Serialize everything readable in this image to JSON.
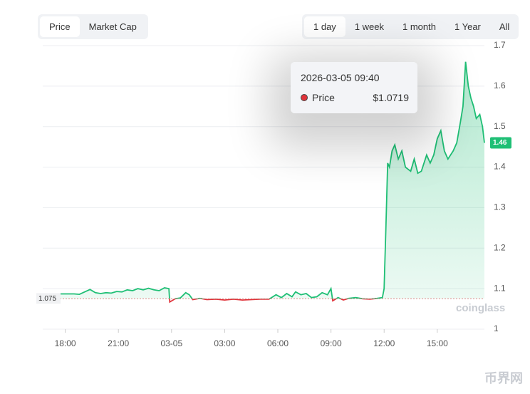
{
  "tabs_left": [
    "Price",
    "Market Cap"
  ],
  "tabs_right": [
    "1 day",
    "1 week",
    "1 month",
    "1 Year",
    "All"
  ],
  "tooltip": {
    "time": "2026-03-05 09:40",
    "name": "Price",
    "value": "$1.0719"
  },
  "watermark": "coinglass",
  "logo": "币界网",
  "chart_data": {
    "type": "line",
    "x": [
      16.75,
      17.0,
      17.5,
      18.0,
      18.5,
      18.8,
      19.1,
      19.4,
      19.7,
      20.0,
      20.3,
      20.6,
      20.9,
      21.2,
      21.5,
      21.8,
      22.1,
      22.4,
      22.7,
      23.0,
      23.3,
      23.6,
      23.85,
      23.9,
      24.2,
      24.5,
      24.8,
      25.0,
      25.2,
      25.6,
      26.0,
      26.5,
      27.0,
      27.5,
      28.0,
      28.5,
      29.0,
      29.5,
      29.9,
      30.2,
      30.5,
      30.8,
      31.0,
      31.3,
      31.6,
      31.9,
      32.2,
      32.5,
      32.8,
      33.0,
      33.1,
      33.4,
      33.7,
      34.0,
      34.4,
      34.8,
      35.2,
      35.6,
      35.9,
      36.0,
      36.1,
      36.2,
      36.3,
      36.45,
      36.6,
      36.8,
      37.0,
      37.2,
      37.5,
      37.7,
      37.9,
      38.1,
      38.4,
      38.6,
      38.8,
      39.0,
      39.2,
      39.4,
      39.6,
      39.9,
      40.1,
      40.3,
      40.45,
      40.6,
      40.75,
      40.9,
      41.05,
      41.2,
      41.4,
      41.55,
      41.66
    ],
    "series": [
      {
        "name": "Price",
        "color": "#1fbf75",
        "down_color": "#e0333a",
        "values": [
          1.087,
          1.086,
          1.087,
          1.087,
          1.087,
          1.086,
          1.092,
          1.098,
          1.09,
          1.088,
          1.09,
          1.089,
          1.093,
          1.092,
          1.097,
          1.095,
          1.1,
          1.097,
          1.101,
          1.097,
          1.095,
          1.102,
          1.1,
          1.067,
          1.075,
          1.077,
          1.09,
          1.085,
          1.073,
          1.076,
          1.073,
          1.074,
          1.072,
          1.074,
          1.072,
          1.073,
          1.074,
          1.074,
          1.085,
          1.078,
          1.088,
          1.08,
          1.092,
          1.085,
          1.088,
          1.078,
          1.08,
          1.09,
          1.085,
          1.1,
          1.07,
          1.078,
          1.072,
          1.076,
          1.078,
          1.075,
          1.074,
          1.076,
          1.078,
          1.1,
          1.25,
          1.41,
          1.4,
          1.44,
          1.455,
          1.42,
          1.44,
          1.4,
          1.39,
          1.42,
          1.385,
          1.39,
          1.43,
          1.41,
          1.43,
          1.47,
          1.49,
          1.44,
          1.42,
          1.44,
          1.46,
          1.51,
          1.55,
          1.66,
          1.6,
          1.57,
          1.55,
          1.52,
          1.53,
          1.5,
          1.46
        ]
      }
    ],
    "baseline": 1.075,
    "current_value": 1.46,
    "xlim": [
      16.73,
      41.66
    ],
    "xticks": [
      {
        "value": 18,
        "label": "18:00"
      },
      {
        "value": 21,
        "label": "21:00"
      },
      {
        "value": 24,
        "label": "03-05"
      },
      {
        "value": 27,
        "label": "03:00"
      },
      {
        "value": 30,
        "label": "06:00"
      },
      {
        "value": 33,
        "label": "09:00"
      },
      {
        "value": 36,
        "label": "12:00"
      },
      {
        "value": 39,
        "label": "15:00"
      }
    ],
    "ylim": [
      1,
      1.7
    ],
    "yticks": [
      1,
      1.1,
      1.2,
      1.3,
      1.4,
      1.5,
      1.6,
      1.7
    ],
    "grid": true
  }
}
